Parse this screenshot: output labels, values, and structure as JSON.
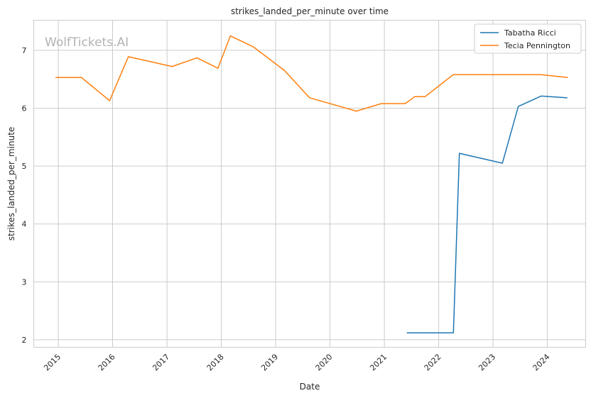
{
  "chart_data": {
    "type": "line",
    "title": "strikes_landed_per_minute over time",
    "xlabel": "Date",
    "ylabel": "strikes_landed_per_minute",
    "watermark": "WolfTickets.AI",
    "x_tick_labels": [
      "2015",
      "2016",
      "2017",
      "2018",
      "2019",
      "2020",
      "2021",
      "2022",
      "2023",
      "2024"
    ],
    "y_tick_labels": [
      "2",
      "3",
      "4",
      "5",
      "6",
      "7"
    ],
    "x_range": [
      "2014-07-20",
      "2024-09-15"
    ],
    "ylim": [
      1.87,
      7.52
    ],
    "grid": true,
    "legend_position": "top-right",
    "series": [
      {
        "name": "Tabatha Ricci",
        "color": "#1f77b4",
        "points": [
          [
            "2021-06-01",
            2.12
          ],
          [
            "2022-04-10",
            2.12
          ],
          [
            "2022-05-20",
            5.22
          ],
          [
            "2023-03-05",
            5.05
          ],
          [
            "2023-06-20",
            6.03
          ],
          [
            "2023-11-20",
            6.21
          ],
          [
            "2024-05-15",
            6.18
          ]
        ]
      },
      {
        "name": "Tecia Pennington",
        "color": "#ff7f0e",
        "points": [
          [
            "2014-12-13",
            6.53
          ],
          [
            "2015-06-06",
            6.53
          ],
          [
            "2015-12-12",
            6.13
          ],
          [
            "2016-04-16",
            6.89
          ],
          [
            "2017-02-04",
            6.72
          ],
          [
            "2017-07-22",
            6.87
          ],
          [
            "2017-12-09",
            6.69
          ],
          [
            "2018-03-03",
            7.25
          ],
          [
            "2018-08-04",
            7.06
          ],
          [
            "2019-03-02",
            6.65
          ],
          [
            "2019-08-17",
            6.18
          ],
          [
            "2020-06-27",
            5.95
          ],
          [
            "2020-12-12",
            6.08
          ],
          [
            "2021-05-22",
            6.08
          ],
          [
            "2021-07-24",
            6.2
          ],
          [
            "2021-10-02",
            6.2
          ],
          [
            "2022-04-09",
            6.58
          ],
          [
            "2023-11-18",
            6.58
          ],
          [
            "2024-05-18",
            6.53
          ]
        ]
      }
    ]
  }
}
